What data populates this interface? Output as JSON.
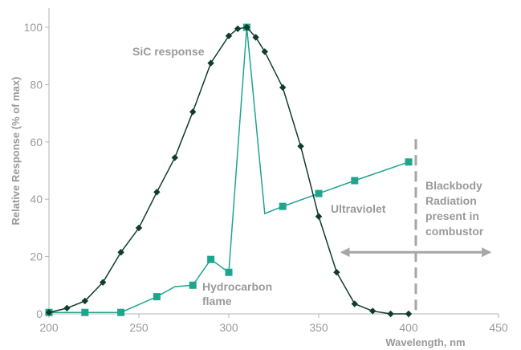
{
  "chart_data": {
    "type": "line",
    "title": "",
    "xlabel": "Wavelength, nm",
    "ylabel": "Relative Response (% of max)",
    "xlim": [
      200,
      450
    ],
    "ylim": [
      0,
      100
    ],
    "xticks": [
      200,
      250,
      300,
      350,
      400,
      450
    ],
    "yticks": [
      0,
      20,
      40,
      60,
      80,
      100
    ],
    "grid": false,
    "colors": {
      "sic": "#0f3d2a",
      "flame": "#1fa58f",
      "blackbody": "#a6a6a6",
      "axis": "#b5b5b5"
    },
    "series": [
      {
        "name": "SiC response",
        "marker": "diamond",
        "x": [
          200,
          210,
          220,
          230,
          240,
          250,
          260,
          270,
          280,
          290,
          300,
          305,
          310,
          315,
          320,
          330,
          340,
          350,
          360,
          370,
          380,
          390,
          400
        ],
        "y": [
          0.5,
          2,
          4.5,
          11,
          21.5,
          30,
          42.5,
          54.5,
          70.5,
          87.5,
          97,
          99.5,
          100,
          96.5,
          91.5,
          79,
          58.5,
          34,
          14.5,
          3.5,
          1,
          0,
          0
        ]
      },
      {
        "name": "Hydrocarbon flame / Ultraviolet",
        "marker": "square",
        "x": [
          200,
          220,
          240,
          260,
          270,
          280,
          290,
          300,
          310,
          320,
          330,
          350,
          370,
          400
        ],
        "y": [
          0.5,
          0.5,
          0.5,
          6,
          9.5,
          10,
          19,
          14.5,
          100,
          35,
          37.5,
          42,
          46.5,
          53
        ],
        "markers_x": [
          200,
          220,
          240,
          260,
          280,
          290,
          300,
          310,
          330,
          350,
          370,
          400
        ],
        "markers_y": [
          0.5,
          0.5,
          0.5,
          6,
          10,
          19,
          14.5,
          100,
          37.5,
          42,
          46.5,
          53
        ]
      }
    ],
    "blackbody_line_x": 404,
    "blackbody_arrow": {
      "x_from": 363,
      "x_to": 445,
      "y": 21.5
    },
    "annotations": {
      "sic": "SiC response",
      "hydrocarbon_line1": "Hydrocarbon",
      "hydrocarbon_line2": "flame",
      "ultraviolet": "Ultraviolet",
      "blackbody_line1": "Blackbody",
      "blackbody_line2": "Radiation",
      "blackbody_line3": "present in",
      "blackbody_line4": "combustor"
    }
  }
}
